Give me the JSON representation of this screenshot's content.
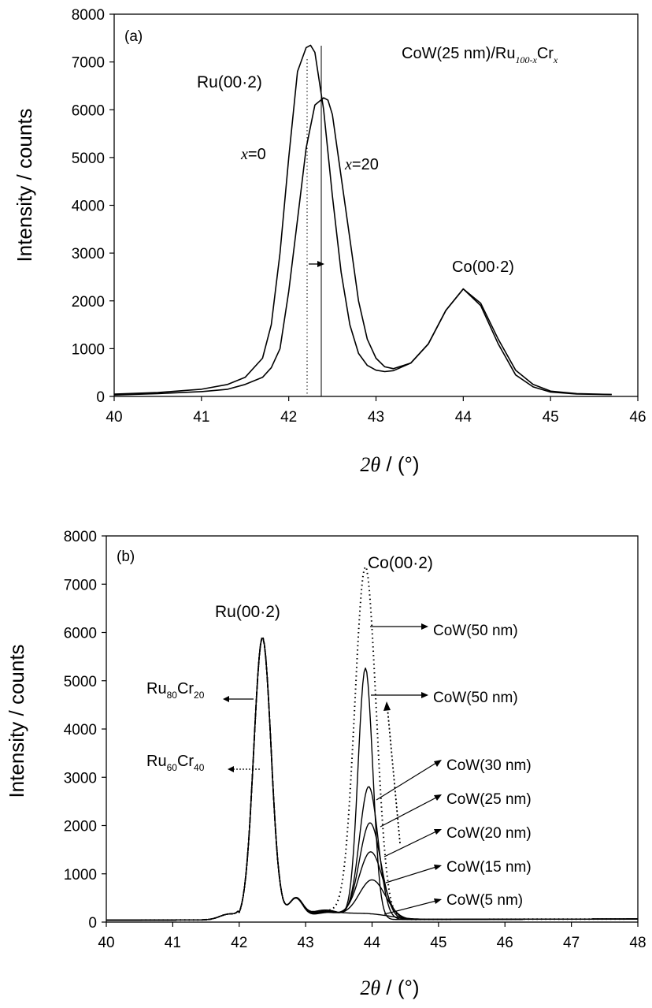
{
  "chart_data": [
    {
      "type": "line",
      "panel_label": "(a)",
      "xlabel_symbol": "2θ",
      "xlabel_unit": " / (°)",
      "xlabel_deg": "o",
      "ylabel": "Intensity / counts",
      "xlim": [
        40,
        46
      ],
      "ylim": [
        0,
        8000
      ],
      "xticks": [
        "40",
        "41",
        "42",
        "43",
        "44",
        "45",
        "46"
      ],
      "yticks": [
        "0",
        "1000",
        "2000",
        "3000",
        "4000",
        "5000",
        "6000",
        "7000",
        "8000"
      ],
      "xtick_values": [
        40,
        41,
        42,
        43,
        44,
        45,
        46
      ],
      "ytick_values": [
        0,
        1000,
        2000,
        3000,
        4000,
        5000,
        6000,
        7000,
        8000
      ],
      "title_parts": {
        "a": "CoW(25 nm)/Ru",
        "b": "100-x",
        "c": "Cr",
        "d": "x"
      },
      "annotations": {
        "ru_peak": "Ru(00·2)",
        "co_peak": "Co(00·2)",
        "x0_var": "x",
        "x0_val": "=0",
        "x20_var": "x",
        "x20_val": "=20"
      },
      "reference_lines": [
        42.23,
        42.4
      ],
      "series": [
        {
          "name": "x=0",
          "style": "solid",
          "x": [
            40.0,
            40.5,
            41.0,
            41.3,
            41.5,
            41.7,
            41.8,
            41.9,
            42.0,
            42.1,
            42.2,
            42.25,
            42.3,
            42.4,
            42.5,
            42.6,
            42.7,
            42.8,
            42.9,
            43.0,
            43.1,
            43.2,
            43.4,
            43.6,
            43.8,
            44.0,
            44.2,
            44.4,
            44.6,
            44.8,
            45.0,
            45.3,
            45.7
          ],
          "y": [
            50,
            80,
            150,
            250,
            400,
            800,
            1500,
            3000,
            5000,
            6800,
            7300,
            7350,
            7200,
            6000,
            4200,
            2600,
            1500,
            900,
            650,
            550,
            520,
            540,
            700,
            1100,
            1800,
            2250,
            1900,
            1100,
            450,
            200,
            90,
            50,
            40
          ]
        },
        {
          "name": "x=20",
          "style": "solid",
          "x": [
            40.0,
            40.5,
            41.0,
            41.3,
            41.5,
            41.7,
            41.8,
            41.9,
            42.0,
            42.1,
            42.2,
            42.3,
            42.4,
            42.45,
            42.5,
            42.6,
            42.7,
            42.8,
            42.9,
            43.0,
            43.1,
            43.2,
            43.4,
            43.6,
            43.8,
            44.0,
            44.2,
            44.4,
            44.6,
            44.8,
            45.0,
            45.3,
            45.7
          ],
          "y": [
            30,
            60,
            100,
            150,
            250,
            400,
            600,
            1000,
            2200,
            3700,
            5200,
            6100,
            6250,
            6200,
            5900,
            4600,
            3300,
            2000,
            1200,
            800,
            620,
            580,
            700,
            1100,
            1800,
            2250,
            1950,
            1200,
            550,
            250,
            110,
            60,
            40
          ]
        }
      ]
    },
    {
      "type": "line",
      "panel_label": "(b)",
      "xlabel_symbol": "2θ",
      "xlabel_unit": " / (°)",
      "xlabel_deg": "o",
      "ylabel": "Intensity / counts",
      "xlim": [
        40,
        48
      ],
      "ylim": [
        0,
        8000
      ],
      "xticks": [
        "40",
        "41",
        "42",
        "43",
        "44",
        "45",
        "46",
        "47",
        "48"
      ],
      "yticks": [
        "0",
        "1000",
        "2000",
        "3000",
        "4000",
        "5000",
        "6000",
        "7000",
        "8000"
      ],
      "xtick_values": [
        40,
        41,
        42,
        43,
        44,
        45,
        46,
        47,
        48
      ],
      "ytick_values": [
        0,
        1000,
        2000,
        3000,
        4000,
        5000,
        6000,
        7000,
        8000
      ],
      "annotations": {
        "ru_peak": "Ru(00·2)",
        "co_peak": "Co(00·2)",
        "ru80_a": "Ru",
        "ru80_b": "80",
        "ru80_c": "Cr",
        "ru80_d": "20",
        "ru60_a": "Ru",
        "ru60_b": "60",
        "ru60_c": "Cr",
        "ru60_d": "40"
      },
      "labels": [
        "CoW(50 nm)",
        "CoW(50 nm)",
        "CoW(30 nm)",
        "CoW(25 nm)",
        "CoW(20 nm)",
        "CoW(15 nm)",
        "CoW(5 nm)"
      ],
      "series": [
        {
          "name": "Ru60Cr40 CoW(50 nm)",
          "style": "dotted",
          "peak_x": 43.9,
          "peak_y": 7300,
          "width": 0.16,
          "shoulder": 180
        },
        {
          "name": "Ru80Cr20 CoW(50 nm)",
          "style": "solid",
          "peak_x": 43.9,
          "peak_y": 5200,
          "width": 0.11,
          "shoulder": 200
        },
        {
          "name": "CoW(30 nm)",
          "style": "solid",
          "peak_x": 43.95,
          "peak_y": 2750,
          "width": 0.14,
          "shoulder": 180
        },
        {
          "name": "CoW(25 nm)",
          "style": "solid",
          "peak_x": 43.97,
          "peak_y": 2000,
          "width": 0.16,
          "shoulder": 170
        },
        {
          "name": "CoW(20 nm)",
          "style": "solid",
          "peak_x": 43.98,
          "peak_y": 1400,
          "width": 0.18,
          "shoulder": 160
        },
        {
          "name": "CoW(15 nm)",
          "style": "solid",
          "peak_x": 44.0,
          "peak_y": 820,
          "width": 0.2,
          "shoulder": 150
        },
        {
          "name": "CoW(5 nm)",
          "style": "solid",
          "peak_x": 43.9,
          "peak_y": 120,
          "width": 0.35,
          "shoulder": 120
        }
      ]
    }
  ]
}
